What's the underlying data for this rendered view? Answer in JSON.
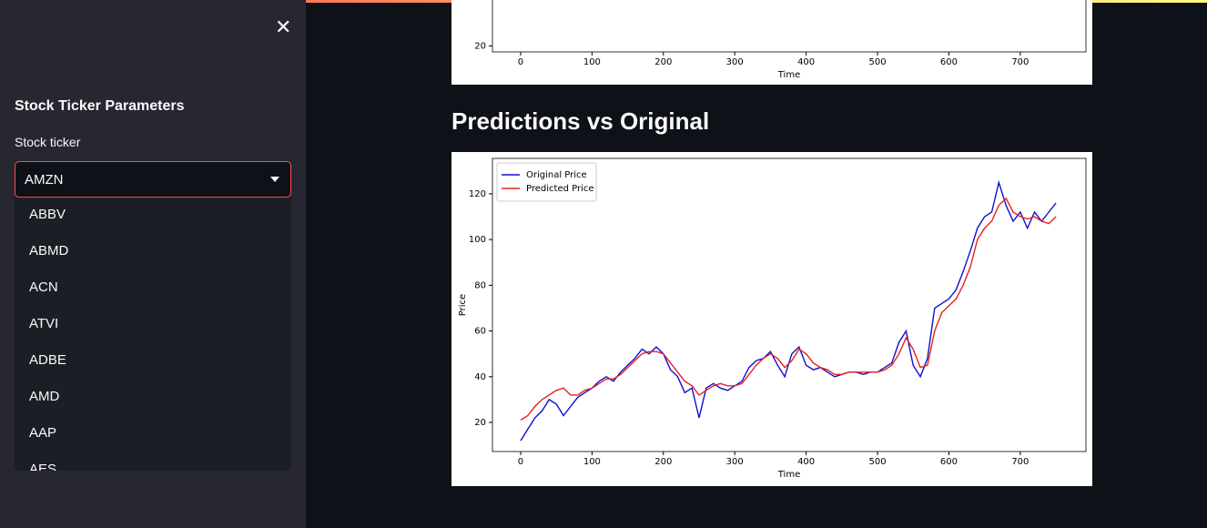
{
  "sidebar": {
    "title": "Stock Ticker Parameters",
    "select_label": "Stock ticker",
    "selected": "AMZN",
    "options": [
      "ABBV",
      "ABMD",
      "ACN",
      "ATVI",
      "ADBE",
      "AMD",
      "AAP",
      "AES"
    ]
  },
  "main": {
    "top_chart": {
      "type": "line",
      "xlabel": "Time",
      "xlim": [
        -39.5,
        792
      ],
      "xticks": [
        0,
        100,
        200,
        300,
        400,
        500,
        600,
        700
      ],
      "ylim": [
        18.5,
        92
      ],
      "yticks": [
        20
      ]
    },
    "heading": "Predictions vs Original",
    "chart": {
      "type": "line",
      "xlabel": "Time",
      "ylabel": "Price",
      "xlim": [
        -39.5,
        792
      ],
      "xticks": [
        0,
        100,
        200,
        300,
        400,
        500,
        600,
        700
      ],
      "ylim": [
        7.25,
        135.5
      ],
      "yticks": [
        20,
        40,
        60,
        80,
        100,
        120
      ],
      "x": [
        0,
        10,
        20,
        30,
        40,
        50,
        60,
        70,
        80,
        90,
        100,
        110,
        120,
        130,
        140,
        150,
        160,
        170,
        180,
        190,
        200,
        210,
        220,
        230,
        240,
        250,
        260,
        270,
        280,
        290,
        300,
        310,
        320,
        330,
        340,
        350,
        360,
        370,
        380,
        390,
        400,
        410,
        420,
        430,
        440,
        450,
        460,
        470,
        480,
        490,
        500,
        510,
        520,
        530,
        540,
        550,
        560,
        570,
        580,
        590,
        600,
        610,
        620,
        630,
        640,
        650,
        660,
        670,
        680,
        690,
        700,
        710,
        720,
        730,
        740,
        750
      ],
      "legend": "upper left",
      "series": [
        {
          "name": "Original Price",
          "color": "#1010d0",
          "values": [
            12,
            17,
            22,
            25,
            30,
            28,
            23,
            27,
            31,
            33,
            35,
            38,
            40,
            38,
            42,
            45,
            48,
            52,
            50,
            53,
            50,
            43,
            40,
            33,
            35,
            22,
            35,
            37,
            35,
            34,
            36,
            38,
            44,
            47,
            48,
            51,
            45,
            40,
            50,
            53,
            45,
            43,
            44,
            42,
            40,
            41,
            42,
            42,
            41,
            42,
            42,
            44,
            46,
            55,
            60,
            45,
            40,
            48,
            70,
            72,
            74,
            78,
            86,
            95,
            105,
            110,
            112,
            125,
            115,
            108,
            112,
            105,
            112,
            108,
            112,
            116
          ]
        },
        {
          "name": "Predicted Price",
          "color": "#e82020",
          "values": [
            21,
            23,
            27,
            30,
            32,
            34,
            35,
            32,
            32,
            34,
            35,
            37,
            39,
            39,
            41,
            44,
            47,
            50,
            51,
            51,
            50,
            46,
            42,
            38,
            36,
            32,
            34,
            36,
            37,
            36,
            36,
            37,
            41,
            45,
            48,
            50,
            48,
            44,
            47,
            52,
            50,
            46,
            44,
            43,
            41,
            41,
            42,
            42,
            42,
            42,
            42,
            43,
            45,
            50,
            57,
            52,
            44,
            45,
            60,
            68,
            71,
            74,
            80,
            88,
            100,
            105,
            108,
            115,
            118,
            112,
            110,
            109,
            110,
            108,
            107,
            110
          ]
        }
      ]
    }
  }
}
